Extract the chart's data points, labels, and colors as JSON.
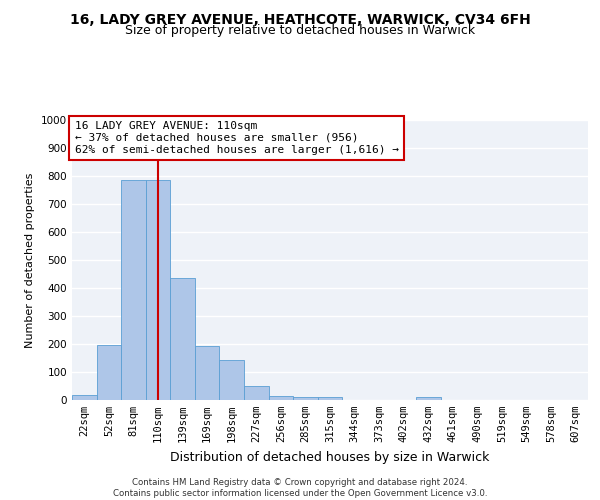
{
  "title1": "16, LADY GREY AVENUE, HEATHCOTE, WARWICK, CV34 6FH",
  "title2": "Size of property relative to detached houses in Warwick",
  "xlabel": "Distribution of detached houses by size in Warwick",
  "ylabel": "Number of detached properties",
  "bin_labels": [
    "22sqm",
    "52sqm",
    "81sqm",
    "110sqm",
    "139sqm",
    "169sqm",
    "198sqm",
    "227sqm",
    "256sqm",
    "285sqm",
    "315sqm",
    "344sqm",
    "373sqm",
    "402sqm",
    "432sqm",
    "461sqm",
    "490sqm",
    "519sqm",
    "549sqm",
    "578sqm",
    "607sqm"
  ],
  "bar_values": [
    18,
    197,
    785,
    787,
    437,
    193,
    142,
    50,
    15,
    12,
    12,
    0,
    0,
    0,
    10,
    0,
    0,
    0,
    0,
    0,
    0
  ],
  "bar_color": "#aec6e8",
  "bar_edge_color": "#5a9fd4",
  "vline_x_index": 3,
  "vline_color": "#cc0000",
  "annotation_line1": "16 LADY GREY AVENUE: 110sqm",
  "annotation_line2": "← 37% of detached houses are smaller (956)",
  "annotation_line3": "62% of semi-detached houses are larger (1,616) →",
  "annotation_box_color": "#ffffff",
  "annotation_box_edge": "#cc0000",
  "ylim": [
    0,
    1000
  ],
  "yticks": [
    0,
    100,
    200,
    300,
    400,
    500,
    600,
    700,
    800,
    900,
    1000
  ],
  "footnote": "Contains HM Land Registry data © Crown copyright and database right 2024.\nContains public sector information licensed under the Open Government Licence v3.0.",
  "background_color": "#eef2f8",
  "grid_color": "#ffffff",
  "title1_fontsize": 10,
  "title2_fontsize": 9,
  "xlabel_fontsize": 9,
  "ylabel_fontsize": 8,
  "tick_fontsize": 7.5,
  "annotation_fontsize": 8
}
